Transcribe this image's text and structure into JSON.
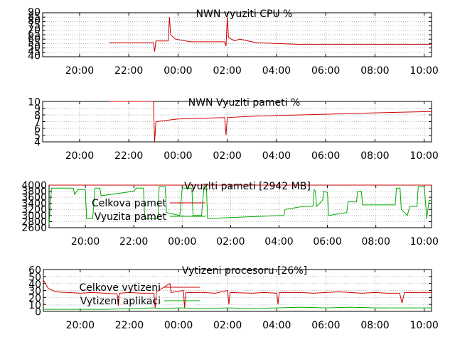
{
  "colors": {
    "red": "#cc0000",
    "green": "#00aa00",
    "axis": "#000000",
    "grid": "#a0a0a0"
  },
  "chart_data": [
    {
      "type": "line",
      "title": "NWN vyuziti CPU %",
      "ylim": [
        40,
        90
      ],
      "yticks": [
        "40",
        "45",
        "50",
        "55",
        "60",
        "65",
        "70",
        "75",
        "80",
        "85",
        "90"
      ],
      "xlim": [
        18.5,
        34.3
      ],
      "xticks": [
        {
          "x": 20,
          "label": "20:00"
        },
        {
          "x": 22,
          "label": "22:00"
        },
        {
          "x": 24,
          "label": "00:00"
        },
        {
          "x": 26,
          "label": "02:00"
        },
        {
          "x": 28,
          "label": "04:00"
        },
        {
          "x": 30,
          "label": "06:00"
        },
        {
          "x": 32,
          "label": "08:00"
        },
        {
          "x": 34,
          "label": "10:00"
        }
      ],
      "grid": true,
      "series": [
        {
          "color": "red",
          "points": [
            [
              21.2,
              56
            ],
            [
              23.0,
              56
            ],
            [
              23.05,
              46
            ],
            [
              23.1,
              58
            ],
            [
              23.6,
              58
            ],
            [
              23.65,
              85
            ],
            [
              23.7,
              65
            ],
            [
              23.9,
              60
            ],
            [
              24.5,
              57
            ],
            [
              25.9,
              57
            ],
            [
              25.95,
              52
            ],
            [
              26.0,
              85
            ],
            [
              26.05,
              62
            ],
            [
              26.3,
              58
            ],
            [
              26.5,
              60
            ],
            [
              27.2,
              56
            ],
            [
              29.0,
              54
            ],
            [
              34.3,
              54
            ]
          ]
        }
      ]
    },
    {
      "type": "line",
      "title": "NWN Vyuzlti pameti %",
      "ylim": [
        4,
        10
      ],
      "yticks": [
        "4",
        "5",
        "6",
        "7",
        "8",
        "9",
        "10"
      ],
      "xlim": [
        18.5,
        34.3
      ],
      "xticks": [
        {
          "x": 20,
          "label": "20:00"
        },
        {
          "x": 22,
          "label": "22:00"
        },
        {
          "x": 24,
          "label": "00:00"
        },
        {
          "x": 26,
          "label": "02:00"
        },
        {
          "x": 28,
          "label": "04:00"
        },
        {
          "x": 30,
          "label": "06:00"
        },
        {
          "x": 32,
          "label": "08:00"
        },
        {
          "x": 34,
          "label": "10:00"
        }
      ],
      "grid": true,
      "series": [
        {
          "color": "red",
          "points": [
            [
              21.2,
              10
            ],
            [
              23.0,
              10
            ],
            [
              23.05,
              4
            ],
            [
              23.1,
              7
            ],
            [
              24.0,
              7.4
            ],
            [
              25.9,
              7.6
            ],
            [
              25.95,
              5
            ],
            [
              26.0,
              7.6
            ],
            [
              27.0,
              7.8
            ],
            [
              29.0,
              8.0
            ],
            [
              31.0,
              8.2
            ],
            [
              33.0,
              8.4
            ],
            [
              34.3,
              8.5
            ]
          ]
        }
      ]
    },
    {
      "type": "line",
      "title": "Vyuzlti pameti [2942 MB]",
      "ylim": [
        2600,
        4000
      ],
      "yticks": [
        "2600",
        "2800",
        "3000",
        "3200",
        "3400",
        "3600",
        "3800",
        "4000"
      ],
      "xlim": [
        18.5,
        34.3
      ],
      "xticks": [
        {
          "x": 20,
          "label": "20:00"
        },
        {
          "x": 22,
          "label": "22:00"
        },
        {
          "x": 24,
          "label": "00:00"
        },
        {
          "x": 26,
          "label": "02:00"
        },
        {
          "x": 28,
          "label": "04:00"
        },
        {
          "x": 30,
          "label": "06:00"
        },
        {
          "x": 32,
          "label": "08:00"
        },
        {
          "x": 34,
          "label": "10:00"
        }
      ],
      "grid": true,
      "legend_placement": "top-left",
      "series": [
        {
          "name": "Celkova pamet",
          "color": "red",
          "points": [
            [
              18.5,
              4000
            ],
            [
              34.3,
              4000
            ]
          ]
        },
        {
          "name": "Vyuzita pamet",
          "color": "green",
          "points": [
            [
              18.5,
              2700
            ],
            [
              18.6,
              3900
            ],
            [
              19.5,
              3900
            ],
            [
              19.55,
              3700
            ],
            [
              19.7,
              3850
            ],
            [
              20.0,
              3850
            ],
            [
              20.05,
              2900
            ],
            [
              20.3,
              2900
            ],
            [
              20.4,
              3900
            ],
            [
              20.6,
              3900
            ],
            [
              20.65,
              3650
            ],
            [
              22.0,
              3800
            ],
            [
              22.1,
              3900
            ],
            [
              22.4,
              3900
            ],
            [
              22.45,
              3000
            ],
            [
              22.5,
              2900
            ],
            [
              23.0,
              2900
            ],
            [
              23.05,
              3950
            ],
            [
              23.3,
              3950
            ],
            [
              23.35,
              3100
            ],
            [
              23.9,
              3000
            ],
            [
              24.0,
              3900
            ],
            [
              24.4,
              3900
            ],
            [
              24.45,
              3000
            ],
            [
              24.8,
              3000
            ],
            [
              24.9,
              3950
            ],
            [
              25.0,
              3950
            ],
            [
              25.05,
              2900
            ],
            [
              26.5,
              2950
            ],
            [
              28.0,
              3000
            ],
            [
              28.2,
              3000
            ],
            [
              28.25,
              3200
            ],
            [
              29.0,
              3300
            ],
            [
              29.4,
              3300
            ],
            [
              29.45,
              3850
            ],
            [
              29.5,
              3800
            ],
            [
              29.55,
              3300
            ],
            [
              29.8,
              3500
            ],
            [
              29.85,
              3800
            ],
            [
              30.0,
              3750
            ],
            [
              30.05,
              3000
            ],
            [
              30.8,
              3100
            ],
            [
              30.85,
              3450
            ],
            [
              31.2,
              3450
            ],
            [
              31.25,
              3800
            ],
            [
              31.4,
              3800
            ],
            [
              31.45,
              3350
            ],
            [
              32.8,
              3350
            ],
            [
              32.85,
              3900
            ],
            [
              33.0,
              3900
            ],
            [
              33.05,
              3200
            ],
            [
              33.3,
              3000
            ],
            [
              33.4,
              3300
            ],
            [
              33.7,
              3300
            ],
            [
              33.75,
              3950
            ],
            [
              34.0,
              3950
            ],
            [
              34.1,
              2900
            ],
            [
              34.2,
              3500
            ],
            [
              34.3,
              3500
            ]
          ]
        }
      ]
    },
    {
      "type": "line",
      "title": "Vytizeni procesoru [26%]",
      "ylim": [
        0,
        60
      ],
      "yticks": [
        "0",
        "10",
        "20",
        "30",
        "40",
        "50",
        "60"
      ],
      "xlim": [
        18.5,
        34.3
      ],
      "xticks": [
        {
          "x": 20,
          "label": "20:00"
        },
        {
          "x": 22,
          "label": "22:00"
        },
        {
          "x": 24,
          "label": "00:00"
        },
        {
          "x": 26,
          "label": "02:00"
        },
        {
          "x": 28,
          "label": "04:00"
        },
        {
          "x": 30,
          "label": "06:00"
        },
        {
          "x": 32,
          "label": "08:00"
        },
        {
          "x": 34,
          "label": "10:00"
        }
      ],
      "grid": true,
      "legend_placement": "top-left",
      "series": [
        {
          "name": "Celkove vytizeni",
          "color": "red",
          "points": [
            [
              18.5,
              45
            ],
            [
              18.7,
              33
            ],
            [
              19.0,
              28
            ],
            [
              19.5,
              27
            ],
            [
              20.0,
              26
            ],
            [
              20.5,
              27
            ],
            [
              21.0,
              26
            ],
            [
              21.5,
              25
            ],
            [
              21.55,
              8
            ],
            [
              21.6,
              26
            ],
            [
              22.0,
              27
            ],
            [
              22.5,
              26
            ],
            [
              23.0,
              26
            ],
            [
              23.05,
              5
            ],
            [
              23.1,
              28
            ],
            [
              23.65,
              40
            ],
            [
              23.7,
              27
            ],
            [
              24.2,
              30
            ],
            [
              24.25,
              5
            ],
            [
              24.3,
              27
            ],
            [
              25.0,
              27
            ],
            [
              25.5,
              26
            ],
            [
              26.0,
              30
            ],
            [
              26.05,
              10
            ],
            [
              26.1,
              27
            ],
            [
              27.0,
              26
            ],
            [
              27.5,
              27
            ],
            [
              28.0,
              26
            ],
            [
              28.05,
              10
            ],
            [
              28.1,
              27
            ],
            [
              29.0,
              27
            ],
            [
              29.5,
              26
            ],
            [
              30.0,
              27
            ],
            [
              30.5,
              28
            ],
            [
              31.0,
              27
            ],
            [
              31.5,
              26
            ],
            [
              32.0,
              27
            ],
            [
              32.5,
              26
            ],
            [
              33.0,
              26
            ],
            [
              33.1,
              12
            ],
            [
              33.2,
              27
            ],
            [
              34.3,
              27
            ]
          ]
        },
        {
          "name": "Vytizeni aplikaci",
          "color": "green",
          "points": [
            [
              18.5,
              3
            ],
            [
              19.0,
              3
            ],
            [
              20.0,
              3
            ],
            [
              21.0,
              3
            ],
            [
              22.0,
              4
            ],
            [
              23.0,
              5
            ],
            [
              23.3,
              4
            ],
            [
              24.0,
              5
            ],
            [
              25.0,
              4
            ],
            [
              26.0,
              5
            ],
            [
              27.0,
              4
            ],
            [
              28.0,
              5
            ],
            [
              29.0,
              6
            ],
            [
              30.0,
              5
            ],
            [
              31.0,
              6
            ],
            [
              32.0,
              5
            ],
            [
              33.0,
              5
            ],
            [
              34.3,
              5
            ]
          ]
        }
      ]
    }
  ]
}
